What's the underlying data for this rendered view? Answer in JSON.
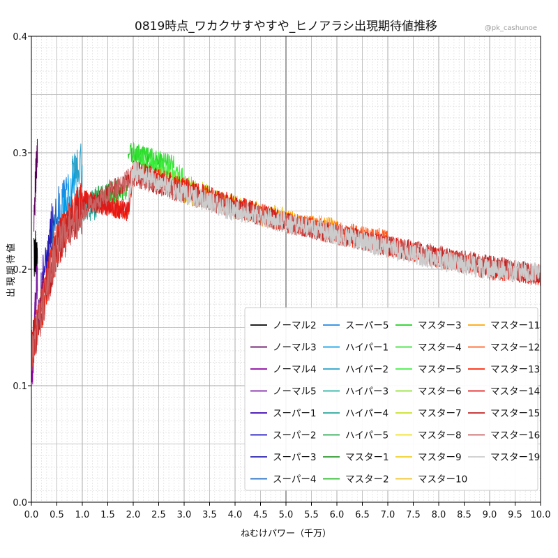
{
  "chart_data": {
    "type": "line",
    "title": "0819時点_ワカクサすやすや_ヒノアラシ出現期待値推移",
    "watermark": "@pk_cashunoe",
    "xlabel": "ねむけパワー（千万）",
    "ylabel": "出現期待値",
    "xlim": [
      0,
      10
    ],
    "ylim": [
      0,
      0.4
    ],
    "x_ticks": [
      "0.0",
      "0.5",
      "1.0",
      "1.5",
      "2.0",
      "2.5",
      "3.0",
      "3.5",
      "4.0",
      "4.5",
      "5.0",
      "5.5",
      "6.0",
      "6.5",
      "7.0",
      "7.5",
      "8.0",
      "8.5",
      "9.0",
      "9.5",
      "10.0"
    ],
    "y_ticks": [
      "0.0",
      "0.1",
      "0.2",
      "0.3",
      "0.4"
    ],
    "grid": "major and minor",
    "legend_placement": "lower-right",
    "series": [
      {
        "name": "ノーマル2",
        "color": "#000000",
        "x": [
          0.05,
          0.12
        ],
        "y": [
          0.21,
          0.22
        ]
      },
      {
        "name": "ノーマル3",
        "color": "#5a005a",
        "x": [
          0.05,
          0.12
        ],
        "y": [
          0.25,
          0.3
        ]
      },
      {
        "name": "ノーマル4",
        "color": "#8a00a0",
        "x": [
          0.0,
          0.12
        ],
        "y": [
          0.1,
          0.2
        ]
      },
      {
        "name": "ノーマル5",
        "color": "#7a1fa2",
        "x": [
          0.0,
          0.12
        ],
        "y": [
          0.12,
          0.19
        ]
      },
      {
        "name": "スーパー1",
        "color": "#3a00b0",
        "x": [
          0.12,
          0.25
        ],
        "y": [
          0.15,
          0.2
        ]
      },
      {
        "name": "スーパー2",
        "color": "#1a10c0",
        "x": [
          0.25,
          0.4
        ],
        "y": [
          0.19,
          0.24
        ]
      },
      {
        "name": "スーパー3",
        "color": "#2a20b0",
        "x": [
          0.3,
          0.45
        ],
        "y": [
          0.2,
          0.25
        ]
      },
      {
        "name": "スーパー4",
        "color": "#1565c0",
        "x": [
          0.4,
          0.55
        ],
        "y": [
          0.22,
          0.26
        ]
      },
      {
        "name": "スーパー5",
        "color": "#1e88e5",
        "x": [
          0.5,
          0.7
        ],
        "y": [
          0.24,
          0.27
        ]
      },
      {
        "name": "ハイパー1",
        "color": "#039be5",
        "x": [
          0.6,
          0.85
        ],
        "y": [
          0.25,
          0.28
        ]
      },
      {
        "name": "ハイパー2",
        "color": "#26a0c8",
        "x": [
          0.8,
          1.0
        ],
        "y": [
          0.28,
          0.29
        ]
      },
      {
        "name": "ハイパー3",
        "color": "#20b0a0",
        "x": [
          0.9,
          1.2
        ],
        "y": [
          0.25,
          0.26
        ]
      },
      {
        "name": "ハイパー4",
        "color": "#26a69a",
        "x": [
          1.0,
          1.3
        ],
        "y": [
          0.25,
          0.25
        ]
      },
      {
        "name": "ハイパー5",
        "color": "#2eaa50",
        "x": [
          1.2,
          1.6
        ],
        "y": [
          0.26,
          0.27
        ]
      },
      {
        "name": "マスター1",
        "color": "#2b9a2b",
        "x": [
          1.4,
          1.7
        ],
        "y": [
          0.26,
          0.27
        ]
      },
      {
        "name": "マスター2",
        "color": "#22b822",
        "x": [
          1.5,
          1.9
        ],
        "y": [
          0.26,
          0.27
        ]
      },
      {
        "name": "マスター3",
        "color": "#1ed01e",
        "x": [
          1.9,
          2.6
        ],
        "y": [
          0.3,
          0.29
        ]
      },
      {
        "name": "マスター4",
        "color": "#32e032",
        "x": [
          2.0,
          2.8
        ],
        "y": [
          0.3,
          0.29
        ]
      },
      {
        "name": "マスター5",
        "color": "#40f040",
        "x": [
          2.1,
          3.0
        ],
        "y": [
          0.29,
          0.28
        ]
      },
      {
        "name": "マスター6",
        "color": "#8ee030",
        "x": [
          2.5,
          3.2
        ],
        "y": [
          0.28,
          0.27
        ]
      },
      {
        "name": "マスター7",
        "color": "#c8e020",
        "x": [
          2.8,
          3.5
        ],
        "y": [
          0.27,
          0.265
        ]
      },
      {
        "name": "マスター8",
        "color": "#f0e020",
        "x": [
          3.0,
          4.0
        ],
        "y": [
          0.265,
          0.255
        ]
      },
      {
        "name": "マスター9",
        "color": "#f0d020",
        "x": [
          3.5,
          4.5
        ],
        "y": [
          0.26,
          0.25
        ]
      },
      {
        "name": "マスター10",
        "color": "#f0c020",
        "x": [
          4.0,
          5.0
        ],
        "y": [
          0.25,
          0.245
        ]
      },
      {
        "name": "マスター11",
        "color": "#ffa500",
        "x": [
          4.5,
          6.0
        ],
        "y": [
          0.245,
          0.235
        ]
      },
      {
        "name": "マスター12",
        "color": "#ff5a1a",
        "x": [
          5.0,
          7.0
        ],
        "y": [
          0.24,
          0.225
        ]
      },
      {
        "name": "マスター13",
        "color": "#ff2000",
        "x": [
          0.0,
          0.5,
          1.0,
          1.9,
          2.0,
          3.0,
          4.0,
          5.0,
          6.0,
          7.0,
          8.0,
          9.0,
          10.0
        ],
        "y": [
          0.13,
          0.22,
          0.26,
          0.25,
          0.285,
          0.27,
          0.255,
          0.24,
          0.23,
          0.22,
          0.21,
          0.2,
          0.195
        ]
      },
      {
        "name": "マスター14",
        "color": "#e01818",
        "x": [
          0.0,
          0.5,
          1.0,
          1.9,
          2.0,
          3.0,
          4.0,
          5.0,
          6.0,
          7.0,
          8.0,
          9.0,
          10.0
        ],
        "y": [
          0.13,
          0.22,
          0.26,
          0.25,
          0.285,
          0.27,
          0.255,
          0.24,
          0.23,
          0.22,
          0.21,
          0.2,
          0.195
        ]
      },
      {
        "name": "マスター15",
        "color": "#c02020",
        "x": [
          0.0,
          0.5,
          1.0,
          2.0,
          3.0,
          5.0,
          7.0,
          10.0
        ],
        "y": [
          0.13,
          0.22,
          0.25,
          0.28,
          0.265,
          0.24,
          0.22,
          0.195
        ]
      },
      {
        "name": "マスター16",
        "color": "#c86464",
        "x": [
          0.0,
          0.5,
          1.0,
          2.0,
          3.0,
          5.0,
          7.0,
          10.0
        ],
        "y": [
          0.13,
          0.22,
          0.25,
          0.28,
          0.265,
          0.24,
          0.22,
          0.195
        ]
      },
      {
        "name": "マスター19",
        "color": "#cccccc",
        "x": [
          1.9,
          2.0,
          2.5,
          3.0,
          4.0,
          5.0,
          6.0,
          7.0,
          8.0,
          9.0,
          10.0
        ],
        "y": [
          0.255,
          0.285,
          0.275,
          0.265,
          0.25,
          0.24,
          0.23,
          0.218,
          0.208,
          0.2,
          0.197
        ]
      }
    ]
  }
}
